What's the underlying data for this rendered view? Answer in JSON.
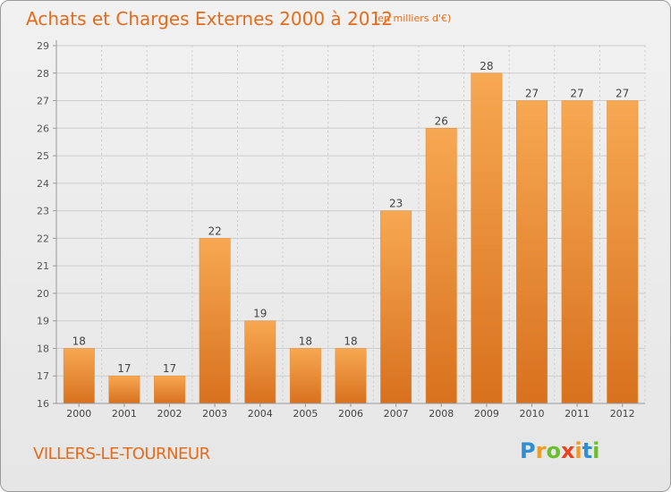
{
  "header": {
    "title": "Achats et Charges Externes 2000 à 2012",
    "unit": "(en milliers d'€)"
  },
  "footer": {
    "place": "VILLERS-LE-TOURNEUR",
    "logo_text": "Proxiti",
    "logo_letters": [
      {
        "char": "P",
        "color": "#2f8fd4"
      },
      {
        "char": "r",
        "color": "#f29a22"
      },
      {
        "char": "o",
        "color": "#6cbf2c"
      },
      {
        "char": "x",
        "color": "#e8431e"
      },
      {
        "char": "i",
        "color": "#f29a22"
      },
      {
        "char": "t",
        "color": "#2f8fd4"
      },
      {
        "char": "i",
        "color": "#6cbf2c"
      }
    ]
  },
  "colors": {
    "accent": "#e36c1c",
    "bar_light": "#f7a852",
    "bar_dark": "#d8711e",
    "grid": "#cccccc",
    "axis": "#999999"
  },
  "chart_data": {
    "type": "bar",
    "title": "Achats et Charges Externes 2000 à 2012",
    "subtitle": "(en milliers d'€)",
    "categories": [
      "2000",
      "2001",
      "2002",
      "2003",
      "2004",
      "2005",
      "2006",
      "2007",
      "2008",
      "2009",
      "2010",
      "2011",
      "2012"
    ],
    "values": [
      18,
      17,
      17,
      22,
      19,
      18,
      18,
      23,
      26,
      28,
      27,
      27,
      27
    ],
    "data_labels": [
      "18",
      "17",
      "17",
      "22",
      "19",
      "18",
      "18",
      "23",
      "26",
      "28",
      "27",
      "27",
      "27"
    ],
    "ylim": [
      16,
      29
    ],
    "yticks": [
      16,
      17,
      18,
      19,
      20,
      21,
      22,
      23,
      24,
      25,
      26,
      27,
      28,
      29
    ],
    "xlabel": "",
    "ylabel": "",
    "grid": true,
    "legend": "none"
  }
}
